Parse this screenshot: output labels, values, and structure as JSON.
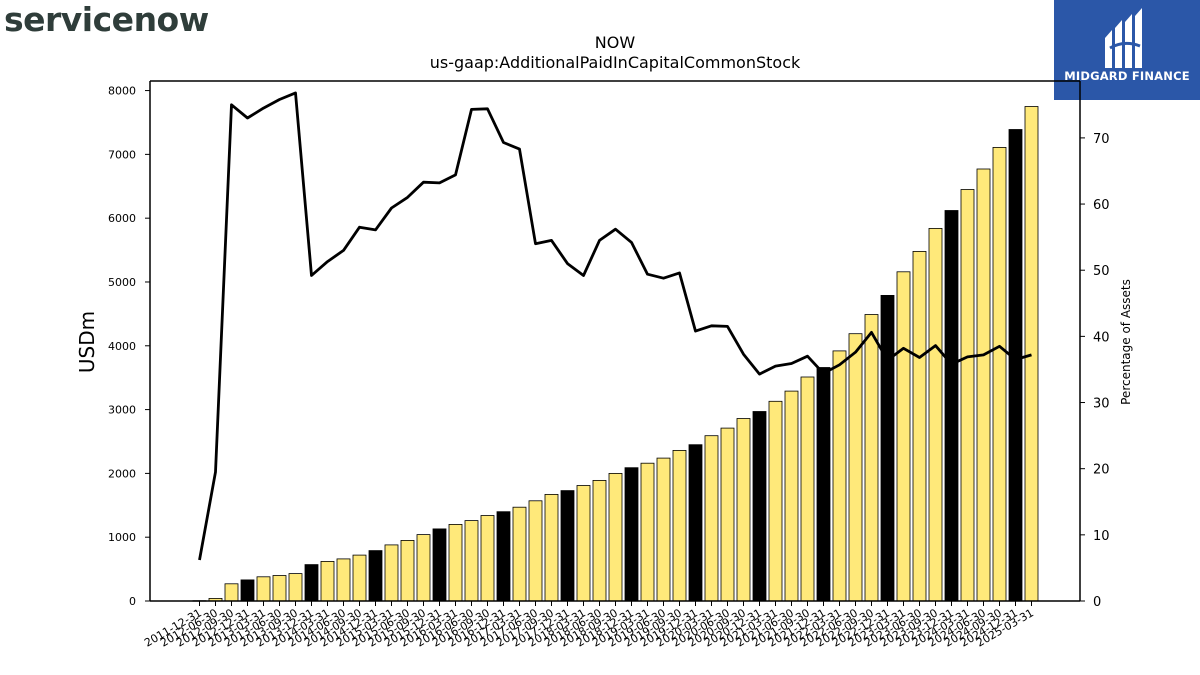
{
  "brand": {
    "left_logo": "servicenow",
    "right_logo": "MIDGARD FINANCE"
  },
  "chart_data": {
    "type": "bar",
    "title": "NOW",
    "subtitle": "us-gaap:AdditionalPaidInCapitalCommonStock",
    "ylabel": "USDm",
    "ylabel_right": "Percentage of Assets",
    "ylim": [
      0,
      8150
    ],
    "ylim_right": [
      0,
      78.6
    ],
    "yticks": [
      0,
      1000,
      2000,
      3000,
      4000,
      5000,
      6000,
      7000,
      8000
    ],
    "yticks_right": [
      0,
      10,
      20,
      30,
      40,
      50,
      60,
      70
    ],
    "categories": [
      "2011-12-31",
      "2012-06-30",
      "2012-09-30",
      "2012-12-31",
      "2013-03-31",
      "2013-06-30",
      "2013-09-30",
      "2013-12-31",
      "2014-03-31",
      "2014-06-30",
      "2014-09-30",
      "2014-12-31",
      "2015-03-31",
      "2015-06-30",
      "2015-09-30",
      "2015-12-31",
      "2016-03-31",
      "2016-06-30",
      "2016-09-30",
      "2016-12-31",
      "2017-03-31",
      "2017-06-30",
      "2017-09-30",
      "2017-12-31",
      "2018-03-31",
      "2018-06-30",
      "2018-09-30",
      "2018-12-31",
      "2019-03-31",
      "2019-06-30",
      "2019-09-30",
      "2019-12-31",
      "2020-03-31",
      "2020-06-30",
      "2020-09-30",
      "2020-12-31",
      "2021-03-31",
      "2021-06-30",
      "2021-09-30",
      "2021-12-31",
      "2022-03-31",
      "2022-06-30",
      "2022-09-30",
      "2022-12-31",
      "2023-03-31",
      "2023-06-30",
      "2023-09-30",
      "2023-12-31",
      "2024-03-31",
      "2024-06-30",
      "2024-09-30",
      "2024-12-31",
      "2025-03-31"
    ],
    "series": [
      {
        "name": "USDm",
        "kind": "bar",
        "values": [
          5,
          40,
          270,
          330,
          380,
          400,
          430,
          570,
          620,
          660,
          720,
          790,
          880,
          950,
          1040,
          1130,
          1200,
          1260,
          1340,
          1400,
          1470,
          1570,
          1670,
          1730,
          1810,
          1890,
          2000,
          2090,
          2160,
          2240,
          2360,
          2450,
          2590,
          2710,
          2860,
          2970,
          3130,
          3290,
          3510,
          3660,
          3920,
          4190,
          4490,
          4790,
          5160,
          5480,
          5840,
          6120,
          6450,
          6770,
          7110,
          7390,
          7750
        ],
        "highlight": [
          false,
          false,
          false,
          true,
          false,
          false,
          false,
          true,
          false,
          false,
          false,
          true,
          false,
          false,
          false,
          true,
          false,
          false,
          false,
          true,
          false,
          false,
          false,
          true,
          false,
          false,
          false,
          true,
          false,
          false,
          false,
          true,
          false,
          false,
          false,
          true,
          false,
          false,
          false,
          true,
          false,
          false,
          false,
          true,
          false,
          false,
          false,
          true,
          false,
          false,
          false,
          true,
          false
        ]
      },
      {
        "name": "Percentage of Assets",
        "kind": "line",
        "axis": "right",
        "values": [
          6.2,
          19.5,
          75.0,
          73.0,
          74.5,
          75.8,
          76.8,
          49.2,
          51.3,
          53.0,
          56.5,
          56.1,
          59.4,
          61.0,
          63.3,
          63.2,
          64.4,
          74.3,
          74.4,
          69.3,
          68.3,
          54.0,
          54.5,
          51.0,
          49.2,
          54.5,
          56.2,
          54.2,
          49.4,
          48.8,
          49.6,
          40.8,
          41.6,
          41.5,
          37.3,
          34.3,
          35.5,
          35.9,
          37.0,
          34.4,
          35.7,
          37.6,
          40.6,
          36.4,
          38.2,
          36.8,
          38.6,
          35.8,
          36.9,
          37.2,
          38.5,
          36.5,
          37.2
        ]
      }
    ],
    "colors": {
      "bar": "#ffe97a",
      "bar_highlight": "#000000",
      "bar_edge": "#000000",
      "line": "#000000"
    }
  }
}
